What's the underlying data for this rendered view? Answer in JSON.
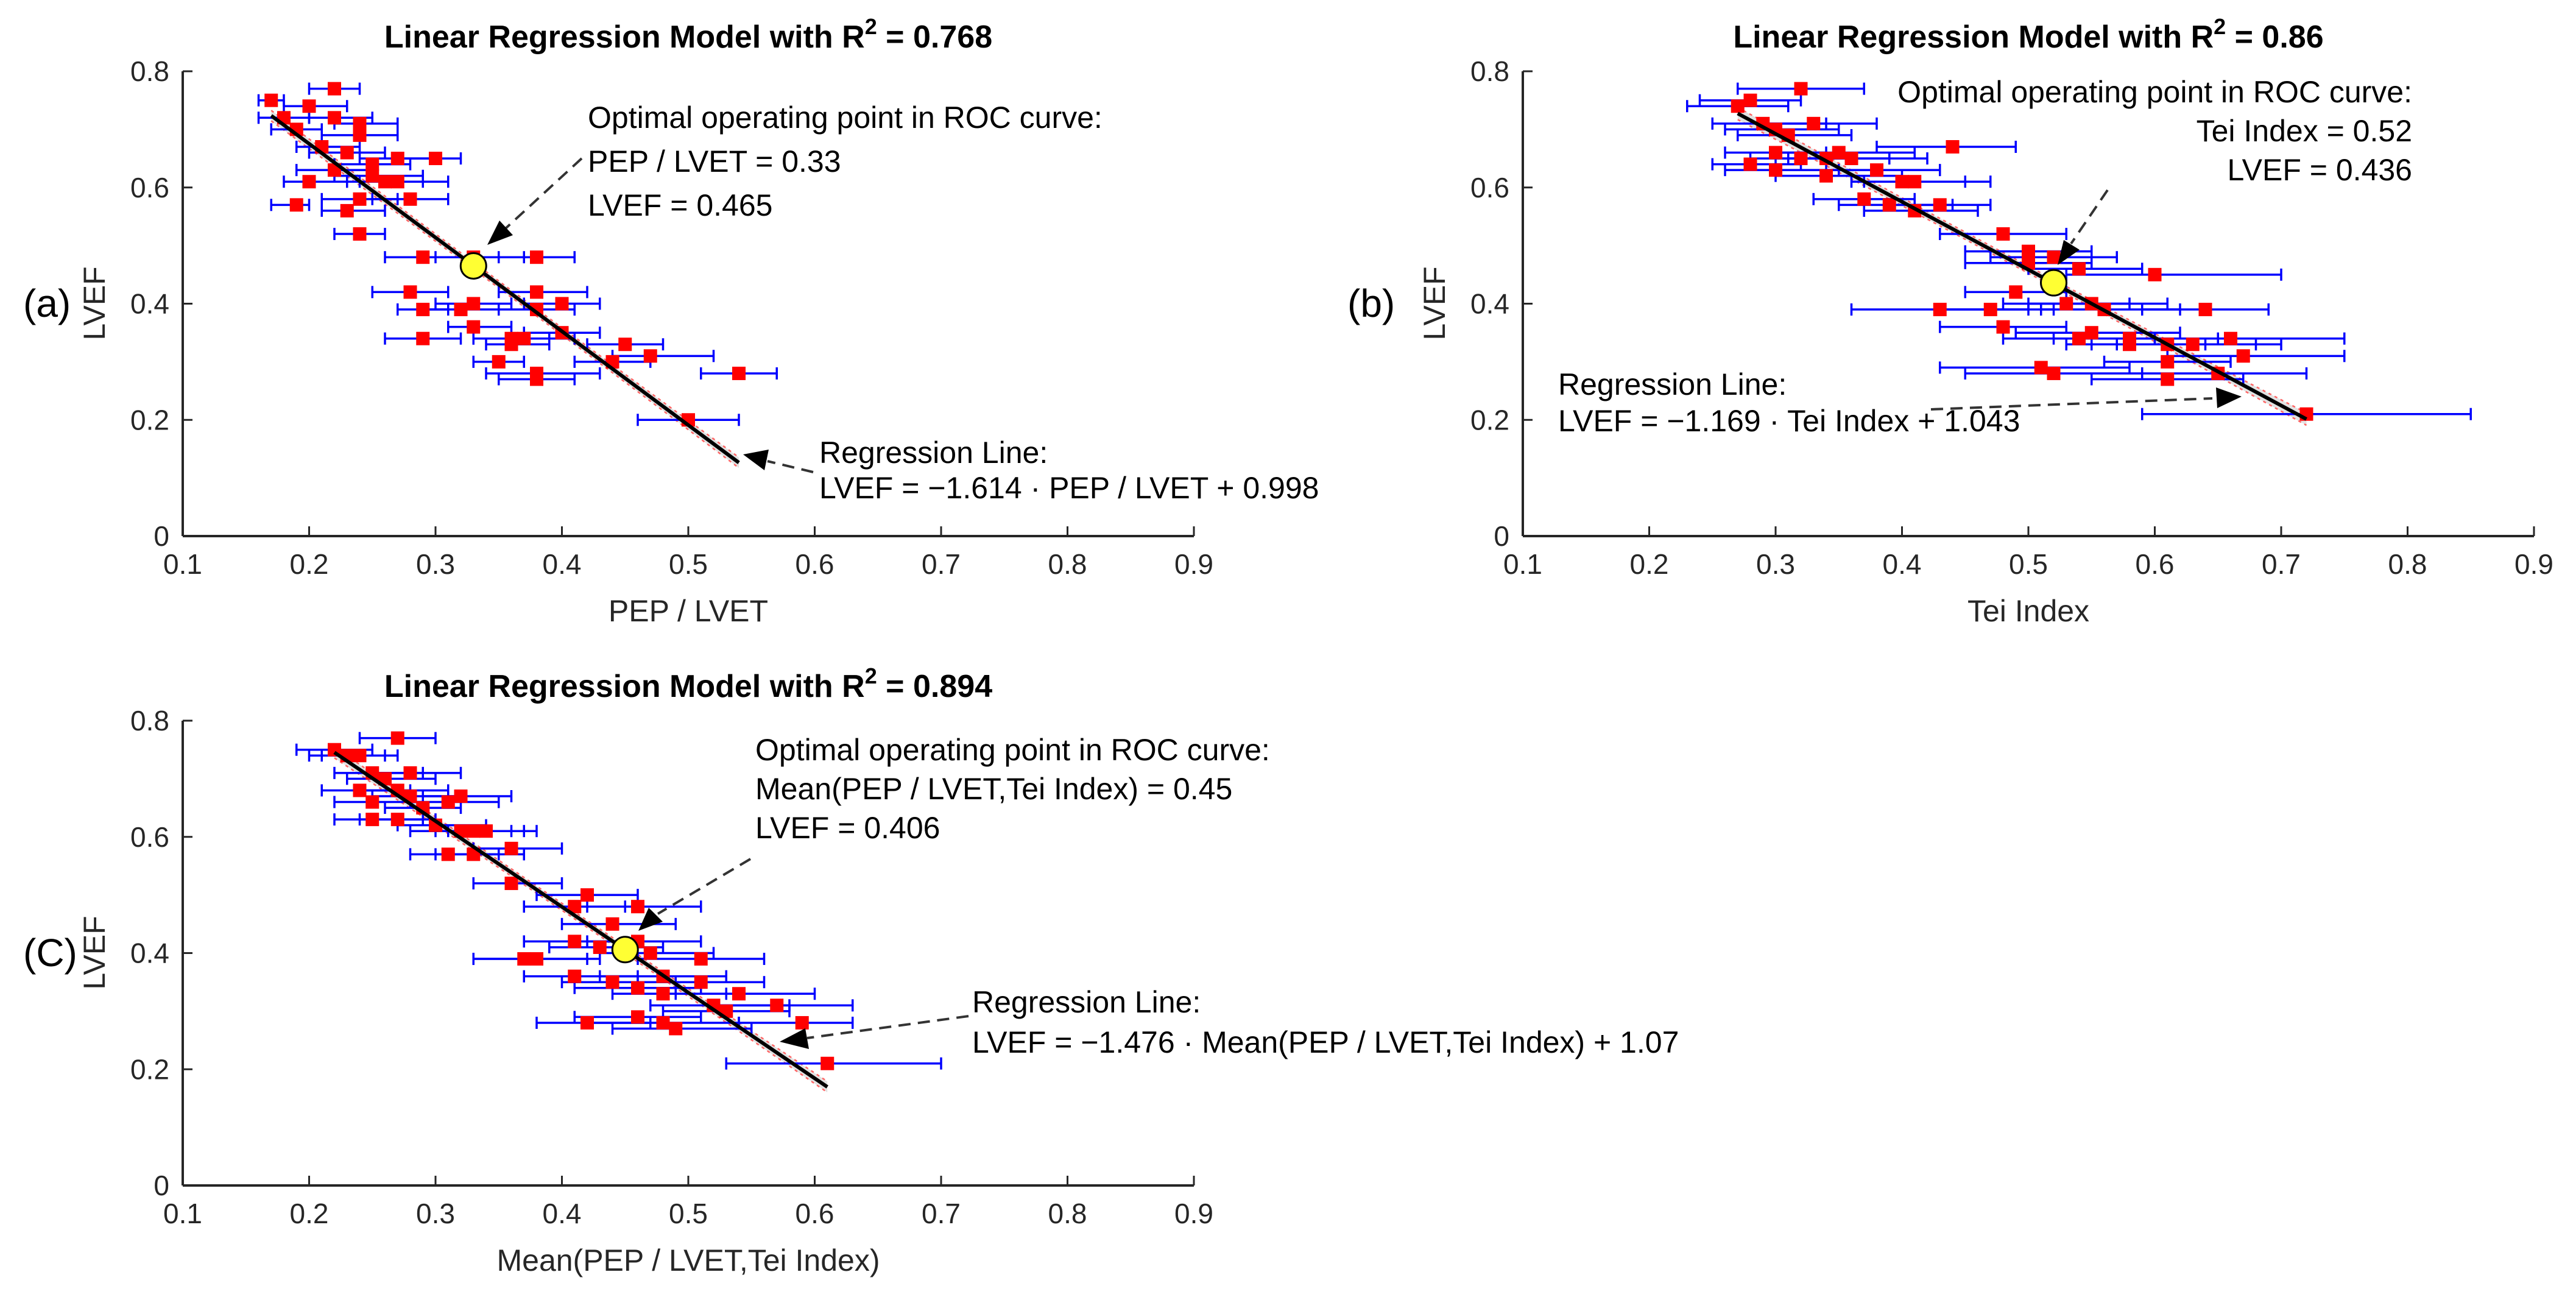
{
  "colors": {
    "point": "#ff0000",
    "errorbar": "#0000ff",
    "line": "#000000",
    "optimal": "#ffff33",
    "band": "#d8d8d8",
    "bound": "#ff6666"
  },
  "chart_data": [
    {
      "type": "scatter",
      "panel_label": "(a)",
      "title": "Linear Regression Model with R",
      "title_sup": "2",
      "title_value": " = 0.768",
      "xlabel": "PEP / LVET",
      "ylabel": "LVEF",
      "xlim": [
        0.1,
        0.9
      ],
      "ylim": [
        0,
        0.8
      ],
      "xticks": [
        0.1,
        0.2,
        0.3,
        0.4,
        0.5,
        0.6,
        0.7,
        0.8,
        0.9
      ],
      "yticks": [
        0,
        0.2,
        0.4,
        0.6,
        0.8
      ],
      "xtick_labels": [
        "0.1",
        "0.2",
        "0.3",
        "0.4",
        "0.5",
        "0.6",
        "0.7",
        "0.8",
        "0.9"
      ],
      "ytick_labels": [
        "0",
        "0.2",
        "0.4",
        "0.6",
        "0.8"
      ],
      "regression": {
        "slope": -1.614,
        "intercept": 0.998,
        "x_range": [
          0.17,
          0.54
        ]
      },
      "optimal_point": [
        0.33,
        0.465
      ],
      "annotations": {
        "optimal": [
          "Optimal operating point in ROC curve:",
          "PEP / LVET = 0.33",
          "LVEF = 0.465"
        ],
        "regression": [
          "Regression Line:",
          "LVEF = −1.614 · PEP / LVET + 0.998"
        ]
      },
      "points": [
        [
          0.17,
          0.75,
          0.16,
          0.18
        ],
        [
          0.18,
          0.72,
          0.16,
          0.2
        ],
        [
          0.19,
          0.7,
          0.17,
          0.21
        ],
        [
          0.2,
          0.74,
          0.18,
          0.23
        ],
        [
          0.22,
          0.77,
          0.2,
          0.24
        ],
        [
          0.22,
          0.72,
          0.2,
          0.25
        ],
        [
          0.21,
          0.67,
          0.19,
          0.24
        ],
        [
          0.24,
          0.71,
          0.22,
          0.27
        ],
        [
          0.24,
          0.69,
          0.21,
          0.27
        ],
        [
          0.23,
          0.66,
          0.2,
          0.26
        ],
        [
          0.25,
          0.64,
          0.22,
          0.28
        ],
        [
          0.25,
          0.62,
          0.22,
          0.29
        ],
        [
          0.27,
          0.65,
          0.24,
          0.3
        ],
        [
          0.26,
          0.61,
          0.23,
          0.29
        ],
        [
          0.27,
          0.61,
          0.24,
          0.31
        ],
        [
          0.22,
          0.63,
          0.19,
          0.25
        ],
        [
          0.2,
          0.61,
          0.18,
          0.23
        ],
        [
          0.19,
          0.57,
          0.17,
          0.2
        ],
        [
          0.24,
          0.58,
          0.21,
          0.27
        ],
        [
          0.23,
          0.56,
          0.21,
          0.26
        ],
        [
          0.24,
          0.52,
          0.22,
          0.26
        ],
        [
          0.28,
          0.58,
          0.25,
          0.31
        ],
        [
          0.3,
          0.65,
          0.27,
          0.32
        ],
        [
          0.33,
          0.48,
          0.3,
          0.37
        ],
        [
          0.29,
          0.48,
          0.26,
          0.33
        ],
        [
          0.28,
          0.42,
          0.25,
          0.31
        ],
        [
          0.29,
          0.39,
          0.27,
          0.31
        ],
        [
          0.29,
          0.34,
          0.26,
          0.32
        ],
        [
          0.32,
          0.39,
          0.29,
          0.35
        ],
        [
          0.33,
          0.4,
          0.3,
          0.36
        ],
        [
          0.33,
          0.36,
          0.31,
          0.36
        ],
        [
          0.38,
          0.48,
          0.35,
          0.41
        ],
        [
          0.36,
          0.34,
          0.33,
          0.39
        ],
        [
          0.35,
          0.3,
          0.33,
          0.37
        ],
        [
          0.36,
          0.33,
          0.34,
          0.39
        ],
        [
          0.37,
          0.34,
          0.33,
          0.41
        ],
        [
          0.38,
          0.42,
          0.35,
          0.42
        ],
        [
          0.38,
          0.39,
          0.35,
          0.41
        ],
        [
          0.38,
          0.28,
          0.34,
          0.43
        ],
        [
          0.38,
          0.27,
          0.35,
          0.41
        ],
        [
          0.4,
          0.4,
          0.37,
          0.43
        ],
        [
          0.4,
          0.35,
          0.37,
          0.43
        ],
        [
          0.44,
          0.3,
          0.41,
          0.47
        ],
        [
          0.45,
          0.33,
          0.42,
          0.48
        ],
        [
          0.47,
          0.31,
          0.44,
          0.52
        ],
        [
          0.5,
          0.2,
          0.46,
          0.54
        ],
        [
          0.54,
          0.28,
          0.51,
          0.57
        ]
      ]
    },
    {
      "type": "scatter",
      "panel_label": "(b)",
      "title": "Linear Regression Model with R",
      "title_sup": "2",
      "title_value": " = 0.86",
      "xlabel": "Tei Index",
      "ylabel": "LVEF",
      "xlim": [
        0.1,
        0.9
      ],
      "ylim": [
        0,
        0.8
      ],
      "xticks": [
        0.1,
        0.2,
        0.3,
        0.4,
        0.5,
        0.6,
        0.7,
        0.8,
        0.9
      ],
      "yticks": [
        0,
        0.2,
        0.4,
        0.6,
        0.8
      ],
      "xtick_labels": [
        "0.1",
        "0.2",
        "0.3",
        "0.4",
        "0.5",
        "0.6",
        "0.7",
        "0.8",
        "0.9"
      ],
      "ytick_labels": [
        "0",
        "0.2",
        "0.4",
        "0.6",
        "0.8"
      ],
      "regression": {
        "slope": -1.169,
        "intercept": 1.043,
        "x_range": [
          0.27,
          0.72
        ]
      },
      "optimal_point": [
        0.52,
        0.436
      ],
      "annotations": {
        "optimal": [
          "Optimal operating point in ROC curve:",
          "Tei Index = 0.52",
          "LVEF = 0.436"
        ],
        "regression": [
          "Regression Line:",
          "LVEF = −1.169 · Tei Index + 1.043"
        ]
      },
      "points": [
        [
          0.27,
          0.74,
          0.23,
          0.31
        ],
        [
          0.28,
          0.75,
          0.24,
          0.32
        ],
        [
          0.32,
          0.77,
          0.27,
          0.37
        ],
        [
          0.29,
          0.71,
          0.25,
          0.34
        ],
        [
          0.3,
          0.7,
          0.26,
          0.35
        ],
        [
          0.31,
          0.69,
          0.27,
          0.36
        ],
        [
          0.33,
          0.71,
          0.29,
          0.38
        ],
        [
          0.3,
          0.66,
          0.26,
          0.34
        ],
        [
          0.32,
          0.65,
          0.28,
          0.36
        ],
        [
          0.34,
          0.65,
          0.3,
          0.39
        ],
        [
          0.35,
          0.66,
          0.3,
          0.41
        ],
        [
          0.36,
          0.65,
          0.31,
          0.42
        ],
        [
          0.44,
          0.67,
          0.38,
          0.49
        ],
        [
          0.28,
          0.64,
          0.25,
          0.32
        ],
        [
          0.3,
          0.63,
          0.26,
          0.35
        ],
        [
          0.34,
          0.62,
          0.3,
          0.4
        ],
        [
          0.38,
          0.63,
          0.34,
          0.43
        ],
        [
          0.4,
          0.61,
          0.36,
          0.45
        ],
        [
          0.41,
          0.61,
          0.37,
          0.47
        ],
        [
          0.37,
          0.58,
          0.33,
          0.41
        ],
        [
          0.39,
          0.57,
          0.35,
          0.44
        ],
        [
          0.41,
          0.56,
          0.37,
          0.46
        ],
        [
          0.43,
          0.57,
          0.39,
          0.47
        ],
        [
          0.48,
          0.52,
          0.43,
          0.53
        ],
        [
          0.5,
          0.49,
          0.45,
          0.55
        ],
        [
          0.52,
          0.48,
          0.47,
          0.57
        ],
        [
          0.5,
          0.47,
          0.45,
          0.55
        ],
        [
          0.54,
          0.46,
          0.5,
          0.59
        ],
        [
          0.53,
          0.4,
          0.48,
          0.58
        ],
        [
          0.55,
          0.4,
          0.5,
          0.61
        ],
        [
          0.56,
          0.39,
          0.51,
          0.62
        ],
        [
          0.49,
          0.42,
          0.45,
          0.53
        ],
        [
          0.47,
          0.39,
          0.43,
          0.52
        ],
        [
          0.43,
          0.39,
          0.36,
          0.5
        ],
        [
          0.48,
          0.36,
          0.43,
          0.53
        ],
        [
          0.55,
          0.35,
          0.49,
          0.62
        ],
        [
          0.54,
          0.34,
          0.48,
          0.6
        ],
        [
          0.58,
          0.34,
          0.52,
          0.65
        ],
        [
          0.58,
          0.33,
          0.53,
          0.64
        ],
        [
          0.6,
          0.45,
          0.53,
          0.7
        ],
        [
          0.64,
          0.39,
          0.59,
          0.69
        ],
        [
          0.61,
          0.33,
          0.55,
          0.68
        ],
        [
          0.63,
          0.33,
          0.57,
          0.7
        ],
        [
          0.66,
          0.34,
          0.6,
          0.75
        ],
        [
          0.67,
          0.31,
          0.61,
          0.75
        ],
        [
          0.61,
          0.3,
          0.56,
          0.66
        ],
        [
          0.65,
          0.28,
          0.59,
          0.72
        ],
        [
          0.51,
          0.29,
          0.43,
          0.58
        ],
        [
          0.52,
          0.28,
          0.45,
          0.59
        ],
        [
          0.61,
          0.27,
          0.55,
          0.67
        ],
        [
          0.72,
          0.21,
          0.59,
          0.85
        ]
      ]
    },
    {
      "type": "scatter",
      "panel_label": "(C)",
      "title": "Linear Regression Model with R",
      "title_sup": "2",
      "title_value": " = 0.894",
      "xlabel": "Mean(PEP / LVET,Tei Index)",
      "ylabel": "LVEF",
      "xlim": [
        0.1,
        0.9
      ],
      "ylim": [
        0,
        0.8
      ],
      "xticks": [
        0.1,
        0.2,
        0.3,
        0.4,
        0.5,
        0.6,
        0.7,
        0.8,
        0.9
      ],
      "yticks": [
        0,
        0.2,
        0.4,
        0.6,
        0.8
      ],
      "xtick_labels": [
        "0.1",
        "0.2",
        "0.3",
        "0.4",
        "0.5",
        "0.6",
        "0.7",
        "0.8",
        "0.9"
      ],
      "ytick_labels": [
        "0",
        "0.2",
        "0.4",
        "0.6",
        "0.8"
      ],
      "regression": {
        "slope": -1.476,
        "intercept": 1.07,
        "x_range": [
          0.22,
          0.61
        ]
      },
      "optimal_point": [
        0.45,
        0.406
      ],
      "annotations": {
        "optimal": [
          "Optimal operating point in ROC curve:",
          "Mean(PEP / LVET,Tei Index) = 0.45",
          "LVEF = 0.406"
        ],
        "regression": [
          "Regression Line:",
          "LVEF = −1.476 · Mean(PEP / LVET,Tei Index) + 1.07"
        ]
      },
      "points": [
        [
          0.22,
          0.75,
          0.19,
          0.25
        ],
        [
          0.23,
          0.74,
          0.2,
          0.26
        ],
        [
          0.24,
          0.74,
          0.21,
          0.27
        ],
        [
          0.27,
          0.77,
          0.24,
          0.3
        ],
        [
          0.25,
          0.71,
          0.22,
          0.29
        ],
        [
          0.26,
          0.7,
          0.23,
          0.3
        ],
        [
          0.28,
          0.71,
          0.25,
          0.32
        ],
        [
          0.24,
          0.68,
          0.21,
          0.28
        ],
        [
          0.27,
          0.68,
          0.24,
          0.31
        ],
        [
          0.28,
          0.67,
          0.25,
          0.32
        ],
        [
          0.25,
          0.66,
          0.22,
          0.29
        ],
        [
          0.29,
          0.65,
          0.26,
          0.32
        ],
        [
          0.31,
          0.66,
          0.28,
          0.35
        ],
        [
          0.32,
          0.67,
          0.29,
          0.36
        ],
        [
          0.3,
          0.62,
          0.27,
          0.34
        ],
        [
          0.33,
          0.61,
          0.3,
          0.37
        ],
        [
          0.32,
          0.61,
          0.28,
          0.36
        ],
        [
          0.34,
          0.61,
          0.31,
          0.38
        ],
        [
          0.25,
          0.63,
          0.22,
          0.29
        ],
        [
          0.27,
          0.63,
          0.24,
          0.3
        ],
        [
          0.31,
          0.57,
          0.28,
          0.35
        ],
        [
          0.33,
          0.57,
          0.3,
          0.37
        ],
        [
          0.36,
          0.58,
          0.33,
          0.4
        ],
        [
          0.36,
          0.52,
          0.33,
          0.4
        ],
        [
          0.42,
          0.5,
          0.38,
          0.46
        ],
        [
          0.41,
          0.48,
          0.37,
          0.45
        ],
        [
          0.44,
          0.45,
          0.4,
          0.49
        ],
        [
          0.46,
          0.48,
          0.42,
          0.51
        ],
        [
          0.41,
          0.42,
          0.37,
          0.46
        ],
        [
          0.43,
          0.41,
          0.39,
          0.48
        ],
        [
          0.46,
          0.42,
          0.42,
          0.51
        ],
        [
          0.38,
          0.39,
          0.33,
          0.43
        ],
        [
          0.37,
          0.39,
          0.33,
          0.42
        ],
        [
          0.41,
          0.36,
          0.37,
          0.46
        ],
        [
          0.44,
          0.35,
          0.4,
          0.49
        ],
        [
          0.46,
          0.34,
          0.41,
          0.51
        ],
        [
          0.47,
          0.4,
          0.43,
          0.52
        ],
        [
          0.48,
          0.36,
          0.43,
          0.53
        ],
        [
          0.48,
          0.33,
          0.44,
          0.53
        ],
        [
          0.51,
          0.39,
          0.46,
          0.56
        ],
        [
          0.51,
          0.35,
          0.46,
          0.56
        ],
        [
          0.52,
          0.31,
          0.47,
          0.58
        ],
        [
          0.53,
          0.3,
          0.48,
          0.58
        ],
        [
          0.54,
          0.33,
          0.49,
          0.6
        ],
        [
          0.57,
          0.31,
          0.52,
          0.63
        ],
        [
          0.48,
          0.28,
          0.42,
          0.54
        ],
        [
          0.49,
          0.27,
          0.44,
          0.55
        ],
        [
          0.46,
          0.29,
          0.41,
          0.51
        ],
        [
          0.42,
          0.28,
          0.38,
          0.47
        ],
        [
          0.59,
          0.28,
          0.54,
          0.63
        ],
        [
          0.61,
          0.21,
          0.53,
          0.7
        ]
      ]
    }
  ]
}
